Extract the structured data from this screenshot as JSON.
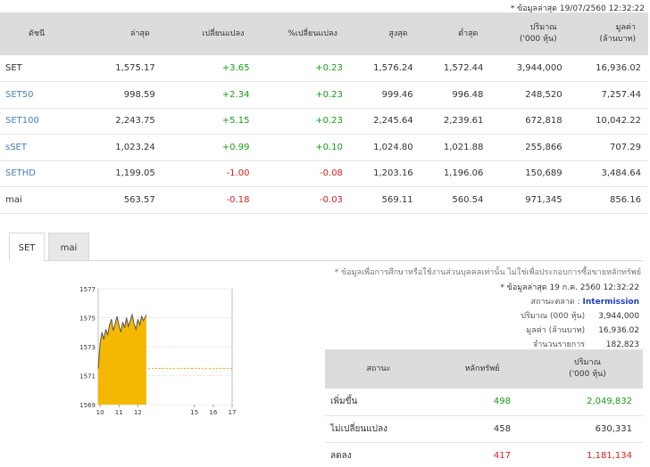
{
  "updated": "* ข้อมูลล่าสุด 19/07/2560 12:32:22",
  "headers": {
    "index": "ดัชนี",
    "last": "ล่าสุด",
    "change": "เปลี่ยนแปลง",
    "pct_change": "%เปลี่ยนแปลง",
    "high": "สูงสุด",
    "low": "ต่ำสุด",
    "volume_1": "ปริมาณ",
    "volume_2": "('000 หุ้น)",
    "value_1": "มูลค่า",
    "value_2": "(ล้านบาท)"
  },
  "rows": [
    {
      "name": "SET",
      "last": "1,575.17",
      "change": "+3.65",
      "pct": "+0.23",
      "high": "1,576.24",
      "low": "1,572.44",
      "volume": "3,944,000",
      "value": "16,936.02"
    },
    {
      "name": "SET50",
      "last": "998.59",
      "change": "+2.34",
      "pct": "+0.23",
      "high": "999.46",
      "low": "996.48",
      "volume": "248,520",
      "value": "7,257.44"
    },
    {
      "name": "SET100",
      "last": "2,243.75",
      "change": "+5.15",
      "pct": "+0.23",
      "high": "2,245.64",
      "low": "2,239.61",
      "volume": "672,818",
      "value": "10,042.22"
    },
    {
      "name": "sSET",
      "last": "1,023.24",
      "change": "+0.99",
      "pct": "+0.10",
      "high": "1,024.80",
      "low": "1,021.88",
      "volume": "255,866",
      "value": "707.29"
    },
    {
      "name": "SETHD",
      "last": "1,199.05",
      "change": "-1.00",
      "pct": "-0.08",
      "high": "1,203.16",
      "low": "1,196.06",
      "volume": "150,689",
      "value": "3,484.64"
    },
    {
      "name": "mai",
      "last": "563.57",
      "change": "-0.18",
      "pct": "-0.03",
      "high": "569.11",
      "low": "560.54",
      "volume": "971,345",
      "value": "856.16"
    }
  ],
  "tabs": [
    "SET",
    "mai"
  ],
  "disclaimer": "* ข้อมูลเพื่อการศึกษาหรือใช้งานส่วนบุคคลเท่านั้น ไม่ใช่เพื่อประกอบการซื้อขายหลักทรัพย์",
  "info": {
    "updated": "* ข้อมูลล่าสุด 19 ก.ค. 2560 12:32:22",
    "status_label": "สถานะตลาด :",
    "status_value": "Intermission",
    "volume_label": "ปริมาณ (000 หุ้น)",
    "volume_value": "3,944,000",
    "value_label": "มูลค่า (ล้านบาท)",
    "value_value": "16,936.02",
    "trades_label": "จำนวนรายการ",
    "trades_value": "182,823"
  },
  "advdec": {
    "h_status": "สถานะ",
    "h_count": "หลักทรัพย์",
    "h_vol_1": "ปริมาณ",
    "h_vol_2": "('000 หุ้น)",
    "rows": [
      {
        "label": "เพิ่มขึ้น",
        "count": "498",
        "volume": "2,049,832"
      },
      {
        "label": "ไม่เปลี่ยนแปลง",
        "count": "458",
        "volume": "630,331"
      },
      {
        "label": "ลดลง",
        "count": "417",
        "volume": "1,181,134"
      }
    ]
  },
  "colors": {
    "up": "#1a9a1a",
    "down": "#d42020",
    "header_bg": "#dcdcdc",
    "area_fill": "#f5b800",
    "price_line": "#555555",
    "prev_close": "#e8a020",
    "status_blue": "#1a3fbf"
  },
  "chart_data": {
    "type": "area",
    "xticks": [
      "10",
      "11",
      "12",
      "15",
      "16",
      "17"
    ],
    "yticks": [
      "1577",
      "1575",
      "1573",
      "1571",
      "1569"
    ],
    "ylim": [
      1569,
      1577
    ],
    "prev_close": 1571.5,
    "x": [
      9.9,
      10.0,
      10.1,
      10.2,
      10.3,
      10.4,
      10.5,
      10.6,
      10.7,
      10.8,
      10.9,
      11.0,
      11.1,
      11.2,
      11.3,
      11.4,
      11.5,
      11.6,
      11.7,
      11.8,
      11.9,
      12.0,
      12.1,
      12.2,
      12.3,
      12.45
    ],
    "series": [
      {
        "values": [
          1571.5,
          1573.2,
          1574.0,
          1573.5,
          1574.2,
          1573.8,
          1574.5,
          1574.9,
          1574.1,
          1574.6,
          1575.1,
          1574.5,
          1574.0,
          1574.7,
          1574.3,
          1575.0,
          1574.4,
          1574.8,
          1575.2,
          1574.6,
          1574.2,
          1574.9,
          1574.5,
          1575.1,
          1574.8,
          1575.2
        ]
      }
    ]
  }
}
